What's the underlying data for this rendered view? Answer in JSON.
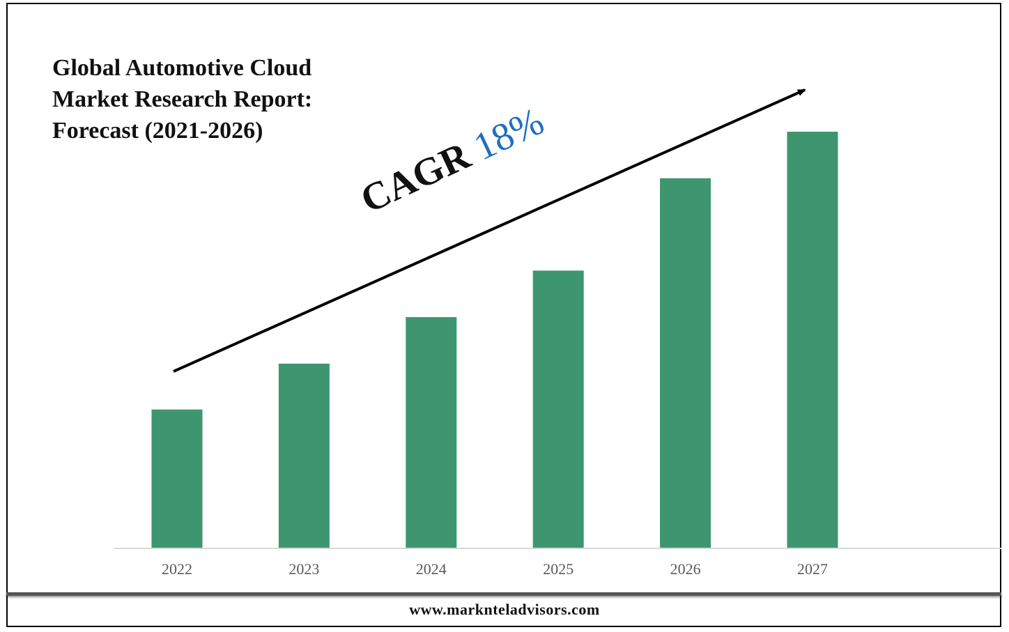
{
  "title_lines": [
    "Global Automotive Cloud",
    "Market Research Report:",
    "Forecast (2021-2026)"
  ],
  "annotation": {
    "label": "CAGR",
    "value": "18%"
  },
  "footer": "www.marknteladvisors.com",
  "colors": {
    "bar": "#3d9670",
    "accent": "#1f6fbf",
    "axis": "#d9d9d9",
    "tick_text": "#595959"
  },
  "chart_data": {
    "type": "bar",
    "categories": [
      "2022",
      "2023",
      "2024",
      "2025",
      "2026",
      "2027"
    ],
    "values": [
      200,
      266,
      333,
      400,
      533,
      600
    ],
    "ylim": [
      0,
      600
    ],
    "title": "Global Automotive Cloud Market Research Report: Forecast (2021-2026)",
    "xlabel": "",
    "ylabel": "",
    "grid": false,
    "legend": "none"
  }
}
